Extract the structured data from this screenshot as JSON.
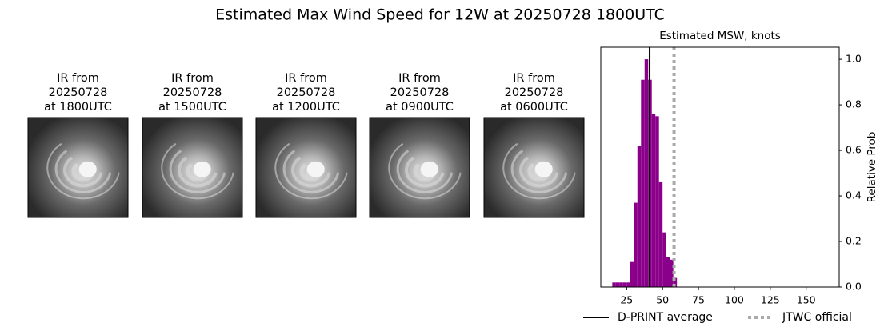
{
  "title": "Estimated Max Wind Speed for 12W at 20250728 1800UTC",
  "panels": [
    {
      "title": [
        "IR from",
        "20250728",
        "at 1800UTC"
      ]
    },
    {
      "title": [
        "IR from",
        "20250728",
        "at 1500UTC"
      ]
    },
    {
      "title": [
        "IR from",
        "20250728",
        "at 1200UTC"
      ]
    },
    {
      "title": [
        "IR from",
        "20250728",
        "at 0900UTC"
      ]
    },
    {
      "title": [
        "IR from",
        "20250728",
        "at 0600UTC"
      ]
    }
  ],
  "chart_data": {
    "type": "histogram",
    "title": "Estimated MSW, knots",
    "y_label": "Relative Prob",
    "bins": [
      15,
      17.5,
      20,
      22.5,
      25,
      27.5,
      30,
      32.5,
      35,
      37.5,
      40,
      42.5,
      45,
      47.5,
      50,
      52.5,
      55,
      57.5,
      60
    ],
    "values": [
      0.02,
      0.02,
      0.02,
      0.02,
      0.02,
      0.11,
      0.37,
      0.62,
      0.91,
      1.0,
      0.91,
      0.76,
      0.75,
      0.46,
      0.24,
      0.13,
      0.12,
      0.04
    ],
    "color": "#8b008b",
    "xlim": [
      7,
      173
    ],
    "ylim": [
      0,
      1.053
    ],
    "xticks": [
      25,
      50,
      75,
      100,
      125,
      150
    ],
    "yticks": [
      {
        "value": 0,
        "label": "0.0"
      },
      0.2,
      0.4,
      0.6,
      0.8,
      {
        "value": 1,
        "label": "1.0"
      }
    ],
    "reference_lines": [
      {
        "name": "D-PRINT average",
        "value": 41,
        "color": "#000000",
        "style": "solid"
      },
      {
        "name": "JTWC official",
        "value": 58,
        "color": "#aaaaaa",
        "style": "dotted"
      }
    ]
  }
}
